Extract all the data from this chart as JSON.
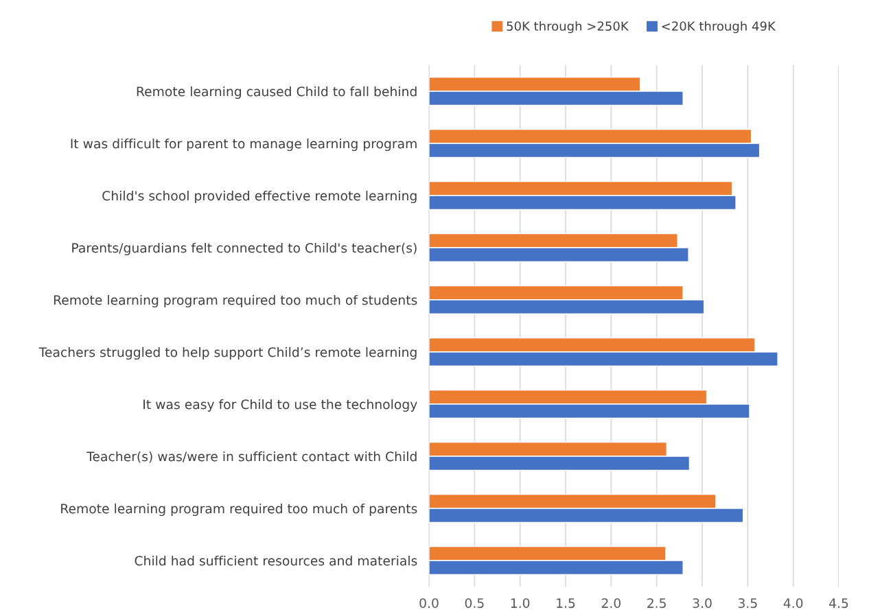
{
  "chart_data": {
    "type": "bar",
    "orientation": "horizontal",
    "categories": [
      "Remote learning caused Child to fall behind",
      "It was difficult for parent to manage learning program",
      "Child's school provided effective remote learning",
      "Parents/guardians felt connected to Child's teacher(s)",
      "Remote learning program required too much of students",
      "Teachers struggled to help support Child’s remote learning",
      "It was easy for Child to use the technology",
      "Teacher(s) was/were in sufficient contact with Child",
      "Remote learning program required too much of parents",
      "Child had sufficient resources and materials"
    ],
    "series": [
      {
        "name": "50K through >250K",
        "color": "#ed7d31",
        "values": [
          2.32,
          3.54,
          3.33,
          2.73,
          2.79,
          3.58,
          3.05,
          2.61,
          3.15,
          2.6
        ]
      },
      {
        "name": "<20K through 49K",
        "color": "#4472c4",
        "values": [
          2.79,
          3.63,
          3.37,
          2.85,
          3.02,
          3.83,
          3.52,
          2.86,
          3.45,
          2.79
        ]
      }
    ],
    "xlim": [
      0,
      4.5
    ],
    "xticks": [
      {
        "value": 0,
        "label": "0.0"
      },
      {
        "value": 0.5,
        "label": "0.5"
      },
      {
        "value": 1,
        "label": "1.0"
      },
      {
        "value": 1.5,
        "label": "1.5"
      },
      {
        "value": 2,
        "label": "2.0"
      },
      {
        "value": 2.5,
        "label": "2.5"
      },
      {
        "value": 3,
        "label": "3.0"
      },
      {
        "value": 3.5,
        "label": "3.5"
      },
      {
        "value": 4,
        "label": "4.0"
      },
      {
        "value": 4.5,
        "label": "4.5"
      }
    ],
    "grid": "x",
    "legend": "top"
  }
}
